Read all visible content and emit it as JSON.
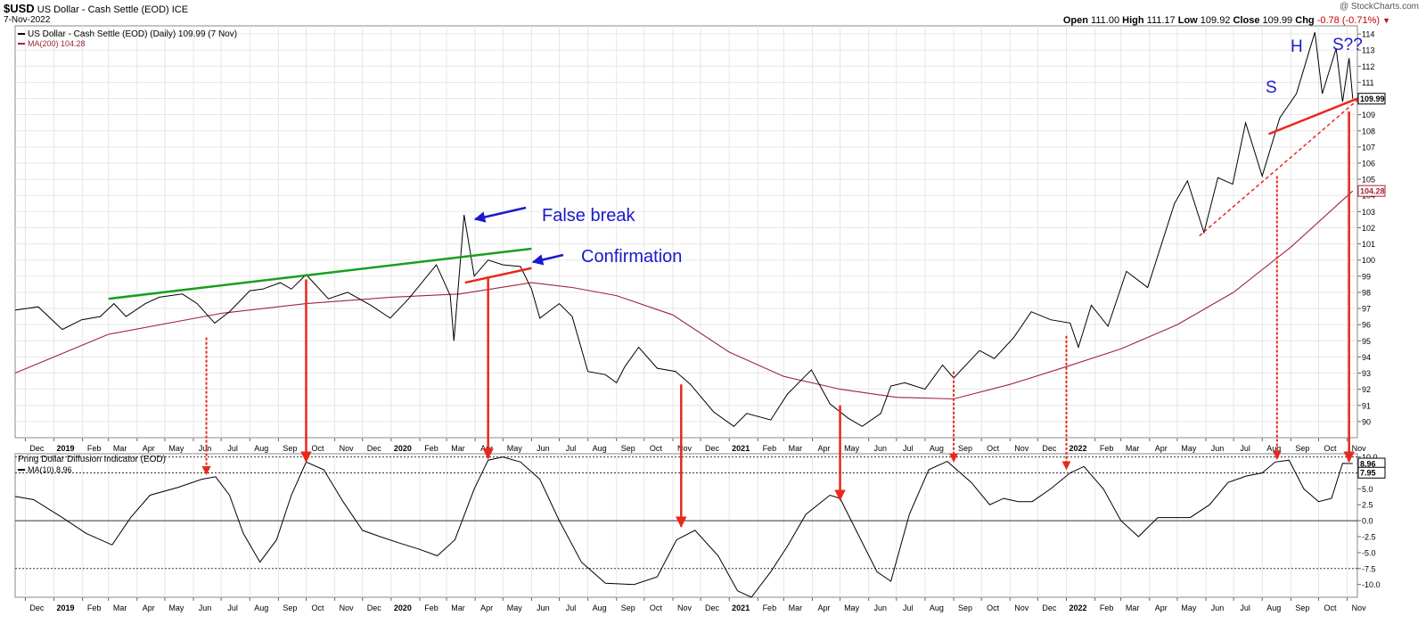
{
  "header": {
    "symbol": "$USD",
    "name": "US Dollar - Cash Settle (EOD)",
    "exchange": "ICE",
    "date": "7-Nov-2022",
    "watermark": "@ StockCharts.com",
    "open_label": "Open",
    "open": "111.00",
    "high_label": "High",
    "high": "111.17",
    "low_label": "Low",
    "low": "109.92",
    "close_label": "Close",
    "close": "109.99",
    "chg_label": "Chg",
    "chg": "-0.78 (-0.71%)"
  },
  "legend": {
    "price": "US Dollar - Cash Settle (EOD) (Daily) 109.99 (7 Nov)",
    "ma": "MA(200) 104.28",
    "ind": "Pring Dollar Diffusion Indicator (EOD)",
    "ind_ma": "MA(10) 8.96"
  },
  "colors": {
    "price": "#000000",
    "ma": "#a0253a",
    "annotation_red": "#e8281e",
    "trendline_green": "#16a01e",
    "arrow_blue": "#1a1acd",
    "label_blue": "#1a1acd",
    "grid": "#e6e6e6",
    "axis_bg": "#ffffff"
  },
  "annotations": {
    "false_break": "False break",
    "confirmation": "Confirmation",
    "h": "H",
    "s_left": "S",
    "s_right": "S??"
  },
  "chart_data": [
    {
      "type": "line",
      "title": "US Dollar - Cash Settle (EOD) (Daily)",
      "ylim": [
        89,
        114.5
      ],
      "y_ticks": [
        90,
        91,
        92,
        93,
        94,
        95,
        96,
        97,
        98,
        99,
        100,
        101,
        102,
        103,
        104,
        105,
        106,
        107,
        108,
        109,
        110,
        111,
        112,
        113,
        114
      ],
      "last_value_labels": [
        "109.99",
        "104.28"
      ],
      "x_ticks": [
        "Dec",
        "2019",
        "Feb",
        "Mar",
        "Apr",
        "May",
        "Jun",
        "Jul",
        "Aug",
        "Sep",
        "Oct",
        "Nov",
        "Dec",
        "2020",
        "Feb",
        "Mar",
        "Apr",
        "May",
        "Jun",
        "Jul",
        "Aug",
        "Sep",
        "Oct",
        "Nov",
        "Dec",
        "2021",
        "Feb",
        "Mar",
        "Apr",
        "May",
        "Jun",
        "Jul",
        "Aug",
        "Sep",
        "Oct",
        "Nov",
        "Dec",
        "2022",
        "Feb",
        "Mar",
        "Apr",
        "May",
        "Jun",
        "Jul",
        "Aug",
        "Sep",
        "Oct",
        "Nov"
      ],
      "x_start": "2018-11-20",
      "x_end": "2022-11-12",
      "series": [
        {
          "name": "US Dollar - Cash Settle (EOD)",
          "x": [
            "2018-11-20",
            "2018-12-15",
            "2019-01-10",
            "2019-01-31",
            "2019-02-20",
            "2019-03-07",
            "2019-03-20",
            "2019-04-10",
            "2019-04-25",
            "2019-05-20",
            "2019-06-05",
            "2019-06-24",
            "2019-07-10",
            "2019-08-01",
            "2019-08-15",
            "2019-09-03",
            "2019-09-15",
            "2019-10-01",
            "2019-10-25",
            "2019-11-15",
            "2019-12-10",
            "2019-12-31",
            "2020-01-20",
            "2020-02-19",
            "2020-03-05",
            "2020-03-09",
            "2020-03-20",
            "2020-03-31",
            "2020-04-15",
            "2020-05-01",
            "2020-05-20",
            "2020-06-01",
            "2020-06-10",
            "2020-07-01",
            "2020-07-15",
            "2020-08-01",
            "2020-08-20",
            "2020-09-01",
            "2020-09-10",
            "2020-09-25",
            "2020-10-15",
            "2020-11-04",
            "2020-11-20",
            "2020-12-15",
            "2021-01-06",
            "2021-01-20",
            "2021-02-15",
            "2021-03-05",
            "2021-03-31",
            "2021-04-20",
            "2021-05-10",
            "2021-05-25",
            "2021-06-14",
            "2021-06-25",
            "2021-07-10",
            "2021-08-01",
            "2021-08-20",
            "2021-09-01",
            "2021-09-29",
            "2021-10-15",
            "2021-11-05",
            "2021-11-24",
            "2021-12-15",
            "2022-01-05",
            "2022-01-14",
            "2022-01-28",
            "2022-02-15",
            "2022-03-07",
            "2022-03-30",
            "2022-04-28",
            "2022-05-12",
            "2022-05-30",
            "2022-06-14",
            "2022-06-30",
            "2022-07-14",
            "2022-08-01",
            "2022-08-20",
            "2022-09-07",
            "2022-09-27",
            "2022-10-05",
            "2022-10-20",
            "2022-10-27",
            "2022-11-03",
            "2022-11-07"
          ],
          "values": [
            96.9,
            97.1,
            95.7,
            96.3,
            96.5,
            97.3,
            96.5,
            97.3,
            97.7,
            97.9,
            97.3,
            96.1,
            96.8,
            98.1,
            98.2,
            98.6,
            98.2,
            99.1,
            97.6,
            98.0,
            97.2,
            96.4,
            97.6,
            99.7,
            97.8,
            95.0,
            102.8,
            99.0,
            100.0,
            99.7,
            99.6,
            98.2,
            96.4,
            97.3,
            96.5,
            93.1,
            92.9,
            92.4,
            93.4,
            94.6,
            93.3,
            93.1,
            92.3,
            90.6,
            89.7,
            90.5,
            90.1,
            91.7,
            93.2,
            91.1,
            90.2,
            89.7,
            90.5,
            92.2,
            92.4,
            92.0,
            93.5,
            92.7,
            94.4,
            93.9,
            95.2,
            96.8,
            96.3,
            96.1,
            94.6,
            97.2,
            95.9,
            99.3,
            98.3,
            103.5,
            104.9,
            101.7,
            105.1,
            104.7,
            108.5,
            105.2,
            108.8,
            110.3,
            114.1,
            110.3,
            113.1,
            109.8,
            112.5,
            109.99
          ]
        },
        {
          "name": "MA(200)",
          "x": [
            "2018-11-20",
            "2019-03-01",
            "2019-07-01",
            "2019-10-01",
            "2020-01-01",
            "2020-03-15",
            "2020-06-01",
            "2020-07-15",
            "2020-09-01",
            "2020-11-01",
            "2021-01-01",
            "2021-03-01",
            "2021-05-01",
            "2021-07-01",
            "2021-09-01",
            "2021-11-01",
            "2022-01-01",
            "2022-03-01",
            "2022-05-01",
            "2022-07-01",
            "2022-09-01",
            "2022-11-07"
          ],
          "values": [
            93.0,
            95.4,
            96.7,
            97.3,
            97.7,
            97.9,
            98.6,
            98.3,
            97.8,
            96.6,
            94.3,
            92.8,
            92.0,
            91.5,
            91.4,
            92.3,
            93.4,
            94.5,
            96.0,
            98.0,
            100.8,
            104.28
          ]
        }
      ]
    },
    {
      "type": "line",
      "title": "Pring Dollar Diffusion Indicator (EOD)",
      "ylim": [
        -12,
        10.5
      ],
      "y_ticks": [
        10.0,
        7.5,
        5.0,
        2.5,
        0.0,
        -2.5,
        -5.0,
        -7.5,
        -10.0
      ],
      "reference_lines": [
        10,
        7.5,
        0,
        -7.5
      ],
      "last_value_labels": [
        "8.96",
        "7.95"
      ],
      "x_ticks": [
        "Dec",
        "2019",
        "Feb",
        "Mar",
        "Apr",
        "May",
        "Jun",
        "Jul",
        "Aug",
        "Sep",
        "Oct",
        "Nov",
        "Dec",
        "2020",
        "Feb",
        "Mar",
        "Apr",
        "May",
        "Jun",
        "Jul",
        "Aug",
        "Sep",
        "Oct",
        "Nov",
        "Dec",
        "2021",
        "Feb",
        "Mar",
        "Apr",
        "May",
        "Jun",
        "Jul",
        "Aug",
        "Sep",
        "Oct",
        "Nov",
        "Dec",
        "2022",
        "Feb",
        "Mar",
        "Apr",
        "May",
        "Jun",
        "Jul",
        "Aug",
        "Sep",
        "Oct",
        "Nov"
      ],
      "series": [
        {
          "name": "MA(10)",
          "x": [
            "2018-11-20",
            "2018-12-10",
            "2019-01-10",
            "2019-02-05",
            "2019-03-05",
            "2019-03-25",
            "2019-04-15",
            "2019-05-15",
            "2019-06-10",
            "2019-06-25",
            "2019-07-10",
            "2019-07-25",
            "2019-08-12",
            "2019-08-30",
            "2019-09-15",
            "2019-10-01",
            "2019-10-20",
            "2019-11-10",
            "2019-12-01",
            "2019-12-20",
            "2020-01-10",
            "2020-02-01",
            "2020-02-20",
            "2020-03-10",
            "2020-03-31",
            "2020-04-15",
            "2020-05-01",
            "2020-05-20",
            "2020-06-10",
            "2020-07-01",
            "2020-07-25",
            "2020-08-20",
            "2020-09-20",
            "2020-10-15",
            "2020-11-05",
            "2020-11-25",
            "2020-12-20",
            "2021-01-10",
            "2021-01-25",
            "2021-02-15",
            "2021-03-05",
            "2021-03-25",
            "2021-04-20",
            "2021-05-01",
            "2021-05-20",
            "2021-06-10",
            "2021-06-25",
            "2021-07-15",
            "2021-08-05",
            "2021-08-25",
            "2021-09-20",
            "2021-10-10",
            "2021-10-25",
            "2021-11-10",
            "2021-11-25",
            "2021-12-15",
            "2022-01-05",
            "2022-01-20",
            "2022-02-10",
            "2022-03-01",
            "2022-03-20",
            "2022-04-10",
            "2022-04-25",
            "2022-05-15",
            "2022-06-05",
            "2022-06-25",
            "2022-07-15",
            "2022-08-01",
            "2022-08-15",
            "2022-08-30",
            "2022-09-15",
            "2022-10-01",
            "2022-10-15",
            "2022-10-27",
            "2022-11-07"
          ],
          "values": [
            3.8,
            3.3,
            0.5,
            -2.0,
            -3.8,
            0.5,
            4.0,
            5.2,
            6.5,
            6.9,
            4.0,
            -2.0,
            -6.5,
            -3.0,
            4.0,
            9.2,
            8.0,
            3.0,
            -1.5,
            -2.5,
            -3.5,
            -4.5,
            -5.5,
            -3.0,
            5.0,
            9.5,
            10.0,
            9.2,
            6.5,
            0.0,
            -6.5,
            -9.8,
            -10.0,
            -8.8,
            -3.0,
            -1.5,
            -5.5,
            -11.0,
            -12.0,
            -8.0,
            -4.0,
            1.0,
            4.0,
            3.5,
            -2.0,
            -8.0,
            -9.5,
            1.0,
            8.0,
            9.3,
            6.0,
            2.5,
            3.5,
            3.0,
            3.0,
            5.0,
            7.5,
            8.5,
            5.0,
            0.0,
            -2.5,
            0.5,
            0.5,
            0.5,
            2.5,
            6.0,
            7.0,
            7.5,
            9.2,
            9.5,
            5.0,
            3.0,
            3.5,
            9.0,
            8.96
          ]
        }
      ]
    }
  ]
}
